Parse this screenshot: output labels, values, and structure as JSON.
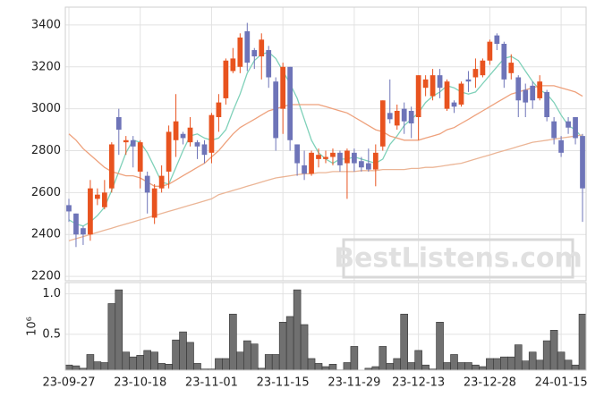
{
  "chart_data": {
    "type": "candlestick",
    "watermark": "BestListens.com",
    "categories": [
      "23-09-27",
      null,
      null,
      null,
      null,
      null,
      null,
      null,
      null,
      null,
      "23-10-18",
      null,
      null,
      null,
      null,
      null,
      null,
      null,
      null,
      null,
      "23-11-01",
      null,
      null,
      null,
      null,
      null,
      null,
      null,
      null,
      null,
      "23-11-15",
      null,
      null,
      null,
      null,
      null,
      null,
      null,
      null,
      null,
      "23-11-29",
      null,
      null,
      null,
      null,
      null,
      null,
      null,
      null,
      "23-12-13",
      null,
      null,
      null,
      null,
      null,
      null,
      null,
      null,
      null,
      "23-12-28",
      null,
      null,
      null,
      null,
      null,
      null,
      null,
      null,
      null,
      "24-01-15",
      null,
      null,
      null
    ],
    "open": [
      2540,
      2500,
      2430,
      2400,
      2570,
      2530,
      2620,
      2960,
      2840,
      2850,
      2700,
      2680,
      2480,
      2620,
      2700,
      2850,
      2880,
      2840,
      2840,
      2830,
      2790,
      2960,
      3050,
      3180,
      3200,
      3370,
      3280,
      3250,
      3280,
      3130,
      3000,
      3200,
      2830,
      2730,
      2690,
      2760,
      2760,
      2770,
      2790,
      2740,
      2790,
      2750,
      2740,
      2710,
      2820,
      2980,
      2920,
      3000,
      2990,
      2960,
      3100,
      3060,
      3160,
      3000,
      3030,
      3020,
      3140,
      3150,
      3160,
      3230,
      3350,
      3310,
      3170,
      3150,
      3090,
      3110,
      3050,
      3080,
      2940,
      2850,
      2940,
      2960,
      2870
    ],
    "high": [
      2570,
      2500,
      2440,
      2660,
      2620,
      2660,
      2840,
      3000,
      2870,
      2870,
      2850,
      2700,
      2640,
      2730,
      2920,
      3070,
      2890,
      2960,
      2850,
      2850,
      2980,
      3070,
      3240,
      3290,
      3360,
      3410,
      3290,
      3360,
      3300,
      3150,
      3220,
      3200,
      2830,
      2800,
      2800,
      2810,
      2800,
      2810,
      2800,
      2810,
      2810,
      2770,
      2810,
      2830,
      3040,
      3140,
      3020,
      3030,
      3010,
      3160,
      3160,
      3190,
      3190,
      3140,
      3040,
      3130,
      3180,
      3240,
      3240,
      3330,
      3360,
      3320,
      3260,
      3160,
      3120,
      3130,
      3160,
      3090,
      2960,
      2870,
      2960,
      2960,
      2880
    ],
    "low": [
      2460,
      2340,
      2350,
      2370,
      2540,
      2520,
      2600,
      2780,
      2780,
      2720,
      2620,
      2500,
      2450,
      2600,
      2620,
      2770,
      2830,
      2820,
      2760,
      2740,
      2740,
      2890,
      3020,
      3170,
      3170,
      3180,
      3190,
      3140,
      3100,
      2800,
      2880,
      2800,
      2680,
      2660,
      2680,
      2720,
      2740,
      2730,
      2700,
      2570,
      2700,
      2700,
      2700,
      2630,
      2800,
      2930,
      2900,
      2880,
      2860,
      2850,
      3060,
      3040,
      3050,
      2990,
      2980,
      3010,
      3080,
      3100,
      3150,
      3210,
      3280,
      3100,
      3140,
      2960,
      2960,
      3000,
      3040,
      2940,
      2830,
      2770,
      2880,
      2830,
      2460
    ],
    "close": [
      2510,
      2400,
      2400,
      2620,
      2590,
      2600,
      2830,
      2900,
      2850,
      2820,
      2840,
      2600,
      2620,
      2680,
      2890,
      2940,
      2860,
      2910,
      2820,
      2780,
      2970,
      3030,
      3230,
      3240,
      3340,
      3220,
      3250,
      3330,
      3150,
      2860,
      3200,
      2850,
      2740,
      2690,
      2790,
      2780,
      2770,
      2790,
      2730,
      2800,
      2740,
      2720,
      2710,
      2790,
      3040,
      2950,
      2990,
      2940,
      2930,
      3160,
      3140,
      3160,
      3100,
      3130,
      3010,
      3120,
      3130,
      3190,
      3230,
      3320,
      3310,
      3140,
      3220,
      3040,
      3030,
      3040,
      3130,
      2960,
      2860,
      2790,
      2910,
      2860,
      2620
    ],
    "up_color": "#e8531f",
    "down_color": "#6e74b8",
    "moving_averages": [
      {
        "color": "#7fd1b9",
        "values": [
          2470,
          2450,
          2440,
          2460,
          2490,
          2530,
          2610,
          2700,
          2790,
          2850,
          2840,
          2790,
          2720,
          2650,
          2640,
          2720,
          2800,
          2870,
          2880,
          2860,
          2850,
          2860,
          2900,
          2990,
          3070,
          3170,
          3230,
          3260,
          3270,
          3240,
          3180,
          3120,
          3050,
          2950,
          2850,
          2790,
          2760,
          2740,
          2760,
          2760,
          2770,
          2760,
          2750,
          2740,
          2760,
          2830,
          2870,
          2920,
          2950,
          2980,
          3030,
          3060,
          3080,
          3110,
          3100,
          3080,
          3070,
          3080,
          3120,
          3160,
          3200,
          3240,
          3250,
          3230,
          3180,
          3130,
          3090,
          3070,
          3030,
          2970,
          2920,
          2900,
          2860
        ]
      },
      {
        "color": "#eea17c",
        "values": [
          2880,
          2850,
          2810,
          2780,
          2750,
          2720,
          2700,
          2690,
          2680,
          2680,
          2670,
          2650,
          2630,
          2630,
          2640,
          2660,
          2680,
          2700,
          2720,
          2740,
          2770,
          2800,
          2840,
          2880,
          2910,
          2930,
          2950,
          2970,
          2990,
          3000,
          3010,
          3020,
          3020,
          3020,
          3020,
          3020,
          3010,
          3000,
          2990,
          2980,
          2960,
          2940,
          2920,
          2900,
          2890,
          2870,
          2860,
          2850,
          2850,
          2850,
          2860,
          2870,
          2880,
          2900,
          2910,
          2930,
          2950,
          2970,
          2990,
          3010,
          3030,
          3050,
          3070,
          3080,
          3090,
          3100,
          3110,
          3110,
          3110,
          3100,
          3090,
          3080,
          3060
        ]
      },
      {
        "color": "#ebb596",
        "values": [
          2370,
          2380,
          2390,
          2400,
          2410,
          2420,
          2430,
          2440,
          2450,
          2460,
          2470,
          2480,
          2490,
          2500,
          2510,
          2520,
          2530,
          2540,
          2550,
          2560,
          2570,
          2590,
          2600,
          2610,
          2620,
          2630,
          2640,
          2650,
          2660,
          2670,
          2675,
          2680,
          2685,
          2690,
          2690,
          2695,
          2695,
          2700,
          2700,
          2700,
          2700,
          2705,
          2705,
          2705,
          2710,
          2710,
          2710,
          2710,
          2715,
          2715,
          2720,
          2720,
          2725,
          2730,
          2735,
          2740,
          2750,
          2760,
          2770,
          2780,
          2790,
          2800,
          2810,
          2820,
          2830,
          2840,
          2845,
          2850,
          2855,
          2860,
          2865,
          2870,
          2875
        ]
      }
    ],
    "ylim": [
      2179,
      3485
    ],
    "yticks": [
      2200,
      2400,
      2600,
      2800,
      3000,
      3200,
      3400
    ],
    "grid": true,
    "volume": {
      "color": "#707070",
      "scale_label": "10⁶",
      "values": [
        0.12,
        0.11,
        0.08,
        0.25,
        0.16,
        0.15,
        0.88,
        1.05,
        0.28,
        0.22,
        0.24,
        0.3,
        0.28,
        0.14,
        0.13,
        0.43,
        0.53,
        0.4,
        0.14,
        0.07,
        0.07,
        0.2,
        0.2,
        0.75,
        0.28,
        0.42,
        0.38,
        0.08,
        0.25,
        0.25,
        0.65,
        0.72,
        1.05,
        0.62,
        0.2,
        0.14,
        0.1,
        0.13,
        0.06,
        0.15,
        0.35,
        0.05,
        0.08,
        0.1,
        0.35,
        0.14,
        0.2,
        0.75,
        0.15,
        0.3,
        0.12,
        0.07,
        0.65,
        0.15,
        0.25,
        0.15,
        0.15,
        0.12,
        0.1,
        0.2,
        0.2,
        0.22,
        0.22,
        0.37,
        0.17,
        0.28,
        0.18,
        0.42,
        0.55,
        0.28,
        0.18,
        0.12,
        0.75
      ],
      "ylim": [
        0.056,
        1.14
      ],
      "yticks": [
        0.5,
        {
          "value": 1,
          "label": "1.0"
        }
      ]
    }
  }
}
